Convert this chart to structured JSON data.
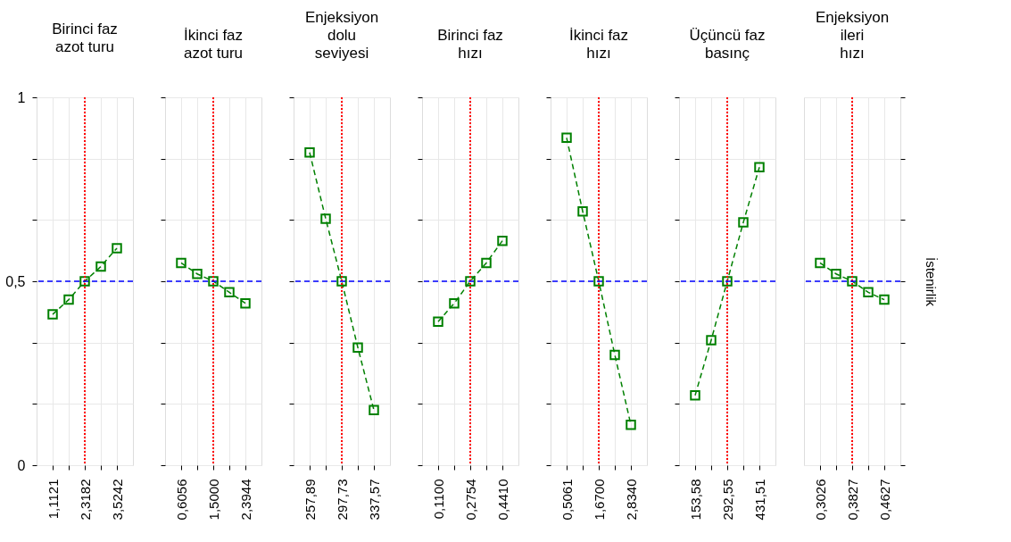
{
  "chart_data": [
    {
      "type": "line",
      "title": [
        "Birinci faz",
        "azot turu"
      ],
      "categories": [
        "1,1121",
        null,
        "2,3182",
        null,
        "3,5242"
      ],
      "values": [
        0.41,
        0.45,
        0.5,
        0.54,
        0.59
      ],
      "color": "#008000",
      "marker": "square",
      "line_style": "dashed",
      "ylim": [
        0,
        1
      ],
      "yticks": [
        0,
        {
          "value": 0.1667,
          "label": null
        },
        {
          "value": 0.3333,
          "label": null
        },
        {
          "value": 0.5,
          "label": "0,5"
        },
        {
          "value": 0.6667,
          "label": null
        },
        {
          "value": 0.8333,
          "label": null
        },
        1
      ],
      "grid": true,
      "ref_lines": [
        {
          "axis": "x",
          "value": "2,3182",
          "color": "#ff0000",
          "line_style": "dotted"
        },
        {
          "axis": "y",
          "value": 0.5,
          "color": "#0000ff",
          "line_style": "dashed"
        }
      ]
    },
    {
      "type": "line",
      "title": [
        "İkinci faz",
        "azot turu"
      ],
      "categories": [
        "0,6056",
        null,
        "1,5000",
        null,
        "2,3944"
      ],
      "values": [
        0.55,
        0.52,
        0.5,
        0.47,
        0.44
      ],
      "color": "#008000",
      "marker": "square",
      "line_style": "dashed",
      "ylim": [
        0,
        1
      ],
      "yticks": [
        0,
        {
          "value": 0.1667,
          "label": null
        },
        {
          "value": 0.3333,
          "label": null
        },
        0.5,
        {
          "value": 0.6667,
          "label": null
        },
        {
          "value": 0.8333,
          "label": null
        },
        1
      ],
      "grid": true,
      "tick_labels": "x",
      "ref_lines": [
        {
          "axis": "x",
          "value": "1,5000",
          "color": "#ff0000",
          "line_style": "dotted"
        },
        {
          "axis": "y",
          "value": 0.5,
          "color": "#0000ff",
          "line_style": "dashed"
        }
      ]
    },
    {
      "type": "line",
      "title": [
        "Enjeksiyon",
        "dolu",
        "seviyesi"
      ],
      "categories": [
        "257,89",
        null,
        "297,73",
        null,
        "337,57"
      ],
      "values": [
        0.85,
        0.67,
        0.5,
        0.32,
        0.15
      ],
      "color": "#008000",
      "marker": "square",
      "line_style": "dashed",
      "ylim": [
        0,
        1
      ],
      "yticks": [
        0,
        {
          "value": 0.1667,
          "label": null
        },
        {
          "value": 0.3333,
          "label": null
        },
        0.5,
        {
          "value": 0.6667,
          "label": null
        },
        {
          "value": 0.8333,
          "label": null
        },
        1
      ],
      "grid": true,
      "tick_labels": "x",
      "ref_lines": [
        {
          "axis": "x",
          "value": "297,73",
          "color": "#ff0000",
          "line_style": "dotted"
        },
        {
          "axis": "y",
          "value": 0.5,
          "color": "#0000ff",
          "line_style": "dashed"
        }
      ]
    },
    {
      "type": "line",
      "title": [
        "Birinci faz",
        "hızı"
      ],
      "categories": [
        "0,1100",
        null,
        "0,2754",
        null,
        "0,4410"
      ],
      "values": [
        0.39,
        0.44,
        0.5,
        0.55,
        0.61
      ],
      "color": "#008000",
      "marker": "square",
      "line_style": "dashed",
      "ylim": [
        0,
        1
      ],
      "yticks": [
        0,
        {
          "value": 0.1667,
          "label": null
        },
        {
          "value": 0.3333,
          "label": null
        },
        0.5,
        {
          "value": 0.6667,
          "label": null
        },
        {
          "value": 0.8333,
          "label": null
        },
        1
      ],
      "grid": true,
      "tick_labels": "x",
      "ref_lines": [
        {
          "axis": "x",
          "value": "0,2754",
          "color": "#ff0000",
          "line_style": "dotted"
        },
        {
          "axis": "y",
          "value": 0.5,
          "color": "#0000ff",
          "line_style": "dashed"
        }
      ]
    },
    {
      "type": "line",
      "title": [
        "İkinci faz",
        "hızı"
      ],
      "categories": [
        "0,5061",
        null,
        "1,6700",
        null,
        "2,8340"
      ],
      "values": [
        0.89,
        0.69,
        0.5,
        0.3,
        0.11
      ],
      "color": "#008000",
      "marker": "square",
      "line_style": "dashed",
      "ylim": [
        0,
        1
      ],
      "yticks": [
        0,
        {
          "value": 0.1667,
          "label": null
        },
        {
          "value": 0.3333,
          "label": null
        },
        0.5,
        {
          "value": 0.6667,
          "label": null
        },
        {
          "value": 0.8333,
          "label": null
        },
        1
      ],
      "grid": true,
      "tick_labels": "x",
      "ref_lines": [
        {
          "axis": "x",
          "value": "1,6700",
          "color": "#ff0000",
          "line_style": "dotted"
        },
        {
          "axis": "y",
          "value": 0.5,
          "color": "#0000ff",
          "line_style": "dashed"
        }
      ]
    },
    {
      "type": "line",
      "title": [
        "Üçüncü faz",
        "basınç"
      ],
      "categories": [
        "153,58",
        null,
        "292,55",
        null,
        "431,51"
      ],
      "values": [
        0.19,
        0.34,
        0.5,
        0.66,
        0.81
      ],
      "color": "#008000",
      "marker": "square",
      "line_style": "dashed",
      "ylim": [
        0,
        1
      ],
      "yticks": [
        0,
        {
          "value": 0.1667,
          "label": null
        },
        {
          "value": 0.3333,
          "label": null
        },
        0.5,
        {
          "value": 0.6667,
          "label": null
        },
        {
          "value": 0.8333,
          "label": null
        },
        1
      ],
      "grid": true,
      "tick_labels": "x",
      "ref_lines": [
        {
          "axis": "x",
          "value": "292,55",
          "color": "#ff0000",
          "line_style": "dotted"
        },
        {
          "axis": "y",
          "value": 0.5,
          "color": "#0000ff",
          "line_style": "dashed"
        }
      ]
    },
    {
      "type": "line",
      "title": [
        "Enjeksiyon",
        "ileri",
        "hızı"
      ],
      "ylabel": "İstenirlik",
      "categories": [
        "0,3026",
        null,
        "0,3827",
        null,
        "0,4627"
      ],
      "values": [
        0.55,
        0.52,
        0.5,
        0.47,
        0.45
      ],
      "color": "#008000",
      "marker": "square",
      "line_style": "dashed",
      "ylim": [
        0,
        1
      ],
      "yticks": [
        0,
        {
          "value": 0.1667,
          "label": null
        },
        {
          "value": 0.3333,
          "label": null
        },
        0.5,
        {
          "value": 0.6667,
          "label": null
        },
        {
          "value": 0.8333,
          "label": null
        },
        1
      ],
      "grid": true,
      "tick_labels": "x",
      "ref_lines": [
        {
          "axis": "x",
          "value": "0,3827",
          "color": "#ff0000",
          "line_style": "dotted"
        },
        {
          "axis": "y",
          "value": 0.5,
          "color": "#0000ff",
          "line_style": "dashed"
        }
      ]
    }
  ]
}
